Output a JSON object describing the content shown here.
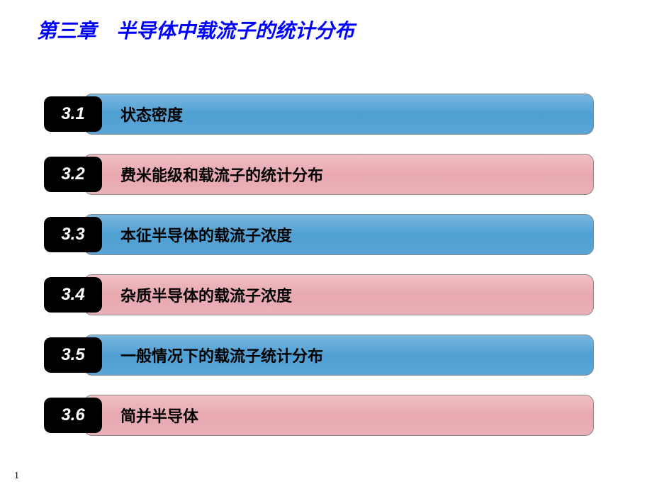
{
  "title": "第三章　半导体中载流子的统计分布",
  "title_color": "#0000ff",
  "title_fontsize": 28,
  "colors": {
    "blue_bar": "#5aa5d6",
    "pink_bar": "#eab0b8",
    "num_box": "#000000",
    "num_text": "#ffffff",
    "label_text": "#000000"
  },
  "sections": [
    {
      "num": "3.1",
      "label": "状态密度",
      "color": "blue"
    },
    {
      "num": "3.2",
      "label": "费米能级和载流子的统计分布",
      "color": "pink"
    },
    {
      "num": "3.3",
      "label": "本征半导体的载流子浓度",
      "color": "blue"
    },
    {
      "num": "3.4",
      "label": "杂质半导体的载流子浓度",
      "color": "pink"
    },
    {
      "num": "3.5",
      "label": "一般情况下的载流子统计分布",
      "color": "blue"
    },
    {
      "num": "3.6",
      "label": "简并半导体",
      "color": "pink"
    }
  ],
  "page_number": "1"
}
